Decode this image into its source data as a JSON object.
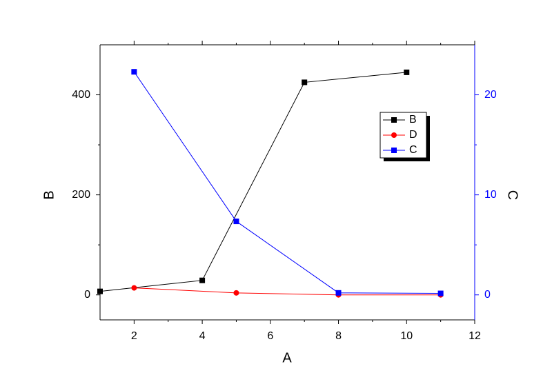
{
  "chart_data": {
    "type": "line",
    "x_label": "A",
    "y_label": "B",
    "y2_label": "C",
    "xlim": [
      1,
      12
    ],
    "xticks": [
      2,
      4,
      6,
      8,
      10,
      12
    ],
    "ylim": [
      -50,
      500
    ],
    "yticks": [
      0,
      200,
      400
    ],
    "y2lim": [
      -2.5,
      25
    ],
    "y2ticks": [
      0,
      10,
      20
    ],
    "y2_color": "#0000ff",
    "legend": "upper right",
    "series": [
      {
        "name": "B",
        "color": "#000000",
        "marker": "square",
        "x": [
          1,
          4,
          7,
          10
        ],
        "values": [
          7,
          29,
          425,
          445
        ]
      },
      {
        "name": "D",
        "color": "#ff0000",
        "marker": "circle",
        "x": [
          2,
          5,
          8,
          11
        ],
        "values": [
          14,
          4,
          0,
          0
        ]
      },
      {
        "name": "C",
        "color": "#0000ff",
        "marker": "square",
        "axis": "y2",
        "x": [
          2,
          5,
          8,
          11
        ],
        "values": [
          22.3,
          7.35,
          0.2,
          0.15
        ]
      }
    ]
  }
}
